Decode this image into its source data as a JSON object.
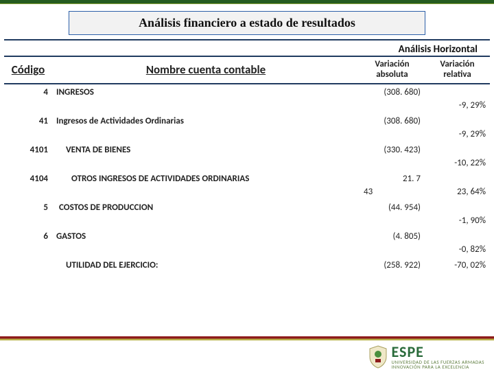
{
  "colors": {
    "top_bar": "#255c1f",
    "title_border": "#2b5ea8",
    "header_rule": "#1f3a5f",
    "footer_red": "#8e1b1b",
    "footer_olive": "#b8b24a",
    "espe_green": "#2a6b3b"
  },
  "title": "Análisis financiero a estado de resultados",
  "analysis_header": "Análisis Horizontal",
  "columns": {
    "codigo": "Código",
    "nombre": "Nombre cuenta contable",
    "var_abs_l1": "Variación",
    "var_abs_l2": "absoluta",
    "var_rel_l1": "Variación",
    "var_rel_l2": "relativa"
  },
  "rows": [
    {
      "codigo": "4",
      "indent": 0,
      "nombre": "INGRESOS",
      "abs": "(308. 680)",
      "abs_prefix": "",
      "rel": "-9, 29%"
    },
    {
      "codigo": "41",
      "indent": 0,
      "nombre": "Ingresos de Actividades Ordinarias",
      "abs": "(308. 680)",
      "abs_prefix": "",
      "rel": "-9, 29%"
    },
    {
      "codigo": "4101",
      "indent": 2,
      "nombre": "VENTA DE BIENES",
      "abs": "(330. 423)",
      "abs_prefix": "",
      "rel": "-10, 22%"
    },
    {
      "codigo": "4104",
      "indent": 3,
      "nombre": "OTROS INGRESOS DE ACTIVIDADES ORDINARIAS",
      "abs": "21. 7",
      "abs_prefix": "43",
      "rel": "23, 64%"
    },
    {
      "codigo": "5",
      "indent": 1,
      "nombre": "COSTOS DE PRODUCCION",
      "abs": "(44. 954)",
      "abs_prefix": "",
      "rel": "-1, 90%"
    },
    {
      "codigo": "6",
      "indent": 0,
      "nombre": "GASTOS",
      "abs": "(4. 805)",
      "abs_prefix": "",
      "rel": "-0, 82%"
    },
    {
      "codigo": "",
      "indent": 2,
      "nombre": "UTILIDAD DEL EJERCICIO:",
      "abs": "(258. 922)",
      "abs_prefix": "",
      "rel": "-70, 02%",
      "single_line": true
    }
  ],
  "logo": {
    "text": "ESPE",
    "subtitle": "UNIVERSIDAD DE LAS FUERZAS ARMADAS",
    "tagline": "INNOVACIÓN PARA LA EXCELENCIA"
  }
}
